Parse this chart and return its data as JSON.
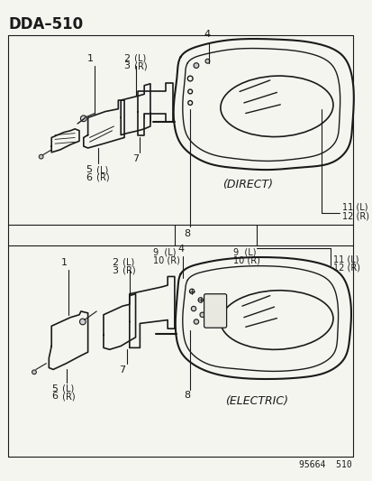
{
  "title": "DDA−510",
  "background_color": "#f5f5f0",
  "line_color": "#1a1a1a",
  "text_color": "#1a1a1a",
  "footer": "95664  510",
  "diagram1_label": "(DIRECT)",
  "diagram2_label": "(ELECTRIC)"
}
